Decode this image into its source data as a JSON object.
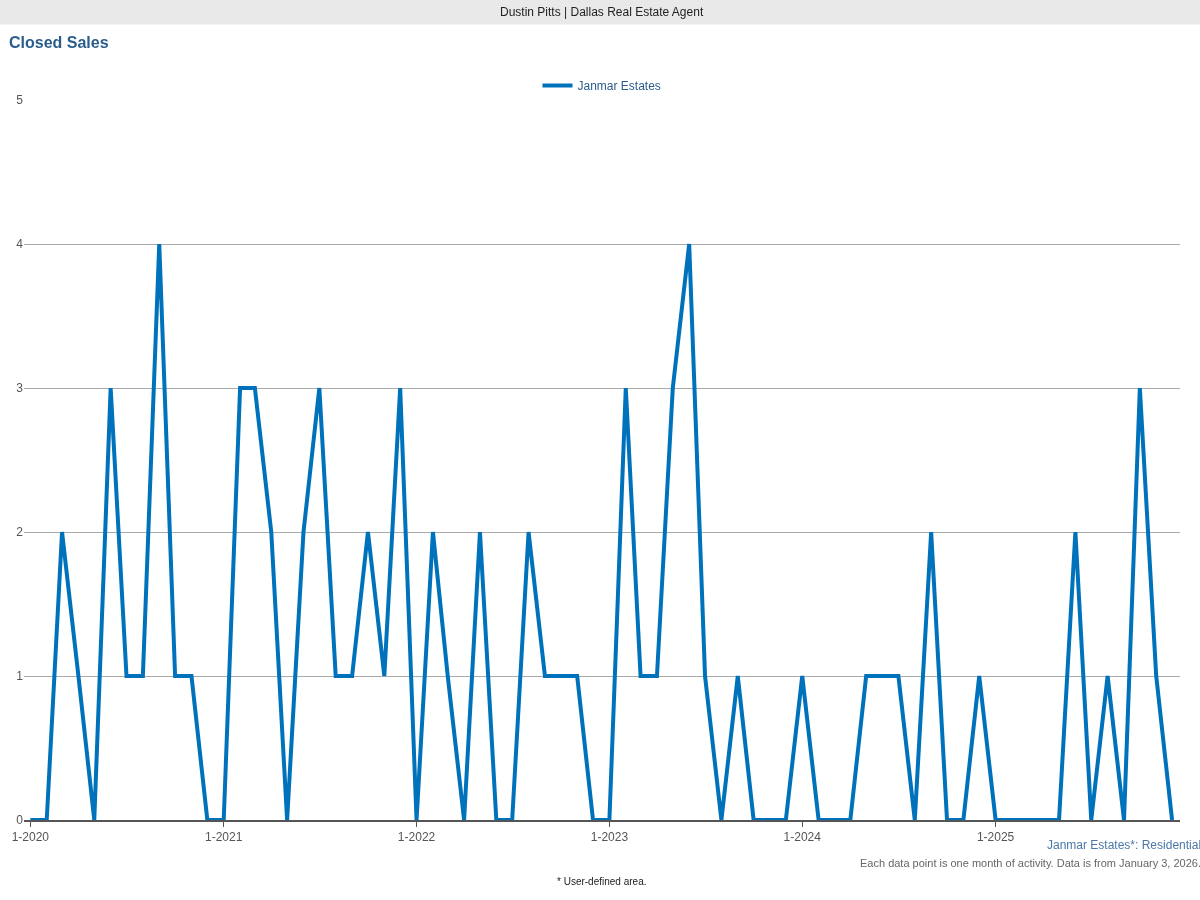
{
  "chart_data": {
    "type": "line",
    "title": "Dustin Pitts | Dallas Real Estate Agent",
    "subtitle": "Closed Sales",
    "x": [
      "2020-01",
      "2020-02",
      "2020-03",
      "2020-04",
      "2020-05",
      "2020-06",
      "2020-07",
      "2020-08",
      "2020-09",
      "2020-10",
      "2020-11",
      "2020-12",
      "2021-01",
      "2021-02",
      "2021-03",
      "2021-04",
      "2021-05",
      "2021-06",
      "2021-07",
      "2021-08",
      "2021-09",
      "2021-10",
      "2021-11",
      "2021-12",
      "2022-01",
      "2022-02",
      "2022-03",
      "2022-04",
      "2022-05",
      "2022-06",
      "2022-07",
      "2022-08",
      "2022-09",
      "2022-10",
      "2022-11",
      "2022-12",
      "2023-01",
      "2023-02",
      "2023-03",
      "2023-04",
      "2023-05",
      "2023-06",
      "2023-07",
      "2023-08",
      "2023-09",
      "2023-10",
      "2023-11",
      "2023-12",
      "2024-01",
      "2024-02",
      "2024-03",
      "2024-04",
      "2024-05",
      "2024-06",
      "2024-07",
      "2024-08",
      "2024-09",
      "2024-10",
      "2024-11",
      "2024-12",
      "2025-01",
      "2025-02",
      "2025-03",
      "2025-04",
      "2025-05",
      "2025-06",
      "2025-07",
      "2025-08",
      "2025-09",
      "2025-10",
      "2025-11",
      "2025-12"
    ],
    "series": [
      {
        "name": "Janmar Estates",
        "color": "#0072bc",
        "values": [
          0,
          0,
          2,
          1,
          0,
          3,
          1,
          1,
          4,
          1,
          1,
          0,
          0,
          3,
          3,
          2,
          0,
          2,
          3,
          1,
          1,
          2,
          1,
          3,
          0,
          2,
          1,
          0,
          2,
          0,
          0,
          2,
          1,
          1,
          1,
          0,
          0,
          3,
          1,
          1,
          3,
          4,
          1,
          0,
          1,
          0,
          0,
          0,
          1,
          0,
          0,
          0,
          1,
          1,
          1,
          0,
          2,
          0,
          0,
          1,
          0,
          0,
          0,
          0,
          0,
          2,
          0,
          1,
          0,
          3,
          1,
          0
        ]
      }
    ],
    "xlim": [
      "2019-12-20",
      "2025-12-16"
    ],
    "xticks": [
      {
        "value": "2020-01",
        "label": "1-2020"
      },
      {
        "value": "2021-01",
        "label": "1-2021"
      },
      {
        "value": "2022-01",
        "label": "1-2022"
      },
      {
        "value": "2023-01",
        "label": "1-2023"
      },
      {
        "value": "2024-01",
        "label": "1-2024"
      },
      {
        "value": "2025-01",
        "label": "1-2025"
      }
    ],
    "ylim": [
      0,
      5
    ],
    "yticks": [
      0,
      1,
      2,
      3,
      4,
      5
    ],
    "grid": "y",
    "legend": "top",
    "marker": "none",
    "line_style": "solid",
    "annotations": [
      "Janmar Estates*: Residential",
      "Each data point is one month of activity. Data is from January 3, 2026.",
      "* User-defined area."
    ]
  }
}
